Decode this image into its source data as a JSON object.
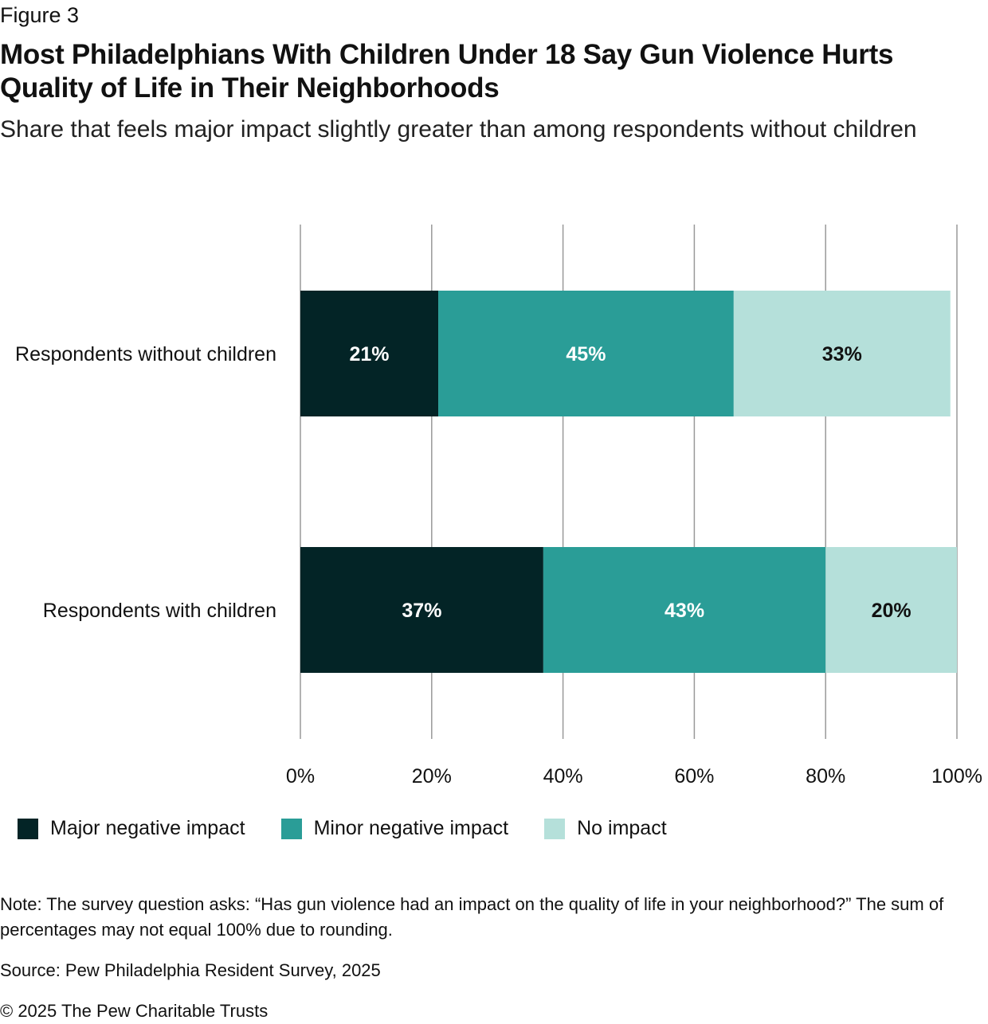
{
  "figure_label": "Figure 3",
  "title": "Most Philadelphians With Children Under 18 Say Gun Violence Hurts Quality of Life in Their Neighborhoods",
  "subtitle": "Share that feels major impact slightly greater than among respondents without children",
  "colors": {
    "major": "#032426",
    "minor": "#2a9d97",
    "none": "#b5e0da",
    "grid": "#999999",
    "label_dark_bg": "#ffffff",
    "label_light_bg": "#111111"
  },
  "chart_data": {
    "type": "bar",
    "orientation": "horizontal",
    "stacked": true,
    "categories": [
      "Respondents without children",
      "Respondents with children"
    ],
    "series": [
      {
        "name": "Major negative impact",
        "values": [
          21,
          37
        ],
        "labels": [
          "21%",
          "37%"
        ]
      },
      {
        "name": "Minor negative impact",
        "values": [
          45,
          43
        ],
        "labels": [
          "45%",
          "43%"
        ]
      },
      {
        "name": "No impact",
        "values": [
          33,
          20
        ],
        "labels": [
          "33%",
          "20%"
        ]
      }
    ],
    "xlim": [
      0,
      100
    ],
    "xticks": [
      0,
      20,
      40,
      60,
      80,
      100
    ],
    "xtick_labels": [
      "0%",
      "20%",
      "40%",
      "60%",
      "80%",
      "100%"
    ],
    "grid": true,
    "legend_position": "bottom-left"
  },
  "legend": {
    "major": "Major negative impact",
    "minor": "Minor negative impact",
    "none": "No impact"
  },
  "note": "Note: The survey question asks: “Has gun violence had an impact on the quality of life in your neighborhood?” The sum of percentages may not equal 100% due to rounding.",
  "source": "Source: Pew Philadelphia Resident Survey, 2025",
  "copyright": "© 2025 The Pew Charitable Trusts"
}
